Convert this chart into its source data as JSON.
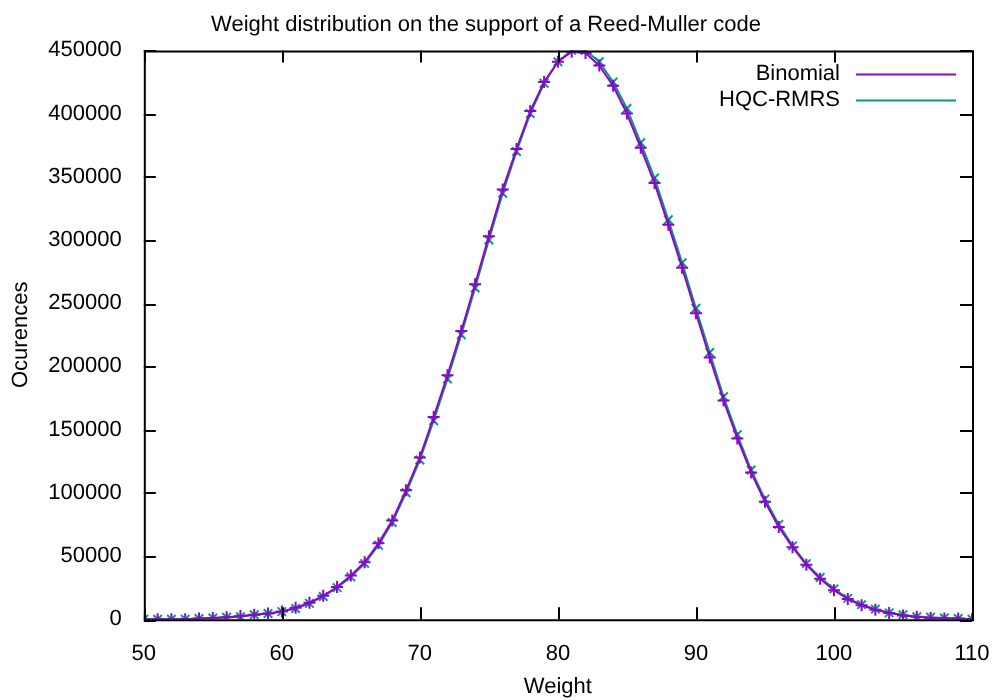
{
  "chart_data": {
    "type": "line",
    "title": "Weight distribution on the support of a Reed-Muller code",
    "xlabel": "Weight",
    "ylabel": "Ocurences",
    "x": [
      50,
      51,
      52,
      53,
      54,
      55,
      56,
      57,
      58,
      59,
      60,
      61,
      62,
      63,
      64,
      65,
      66,
      67,
      68,
      69,
      70,
      71,
      72,
      73,
      74,
      75,
      76,
      77,
      78,
      79,
      80,
      81,
      82,
      83,
      84,
      85,
      86,
      87,
      88,
      89,
      90,
      91,
      92,
      93,
      94,
      95,
      96,
      97,
      98,
      99,
      100,
      101,
      102,
      103,
      104,
      105,
      106,
      107,
      108,
      109,
      110
    ],
    "series": [
      {
        "name": "Binomial",
        "color": "#9400d3",
        "values": [
          0,
          0,
          0,
          0,
          500,
          1000,
          1500,
          2500,
          3500,
          4500,
          6000,
          9000,
          13000,
          18500,
          25500,
          34500,
          45000,
          60000,
          78000,
          102000,
          128000,
          160000,
          193000,
          228000,
          265000,
          303000,
          340000,
          372000,
          402000,
          425000,
          441000,
          449000,
          448000,
          438000,
          422000,
          400000,
          373000,
          345000,
          312000,
          278000,
          242000,
          207000,
          173000,
          143000,
          116000,
          93000,
          73000,
          57000,
          43000,
          32000,
          23000,
          16000,
          11000,
          7500,
          5000,
          3000,
          2000,
          1000,
          500,
          500,
          0
        ]
      },
      {
        "name": "HQC-RMRS",
        "color": "#009e73",
        "values": [
          0,
          0,
          0,
          0,
          500,
          1000,
          1500,
          2000,
          3500,
          4500,
          6000,
          8500,
          12500,
          18000,
          25000,
          33500,
          44000,
          58500,
          76500,
          100000,
          126000,
          157000,
          190000,
          225000,
          262000,
          300000,
          337000,
          370000,
          400000,
          424000,
          441000,
          450000,
          450000,
          441000,
          425000,
          404000,
          377000,
          349000,
          316000,
          282000,
          246000,
          211000,
          176000,
          146000,
          118000,
          95000,
          75000,
          58000,
          44000,
          33000,
          24000,
          16500,
          11500,
          8000,
          5000,
          3500,
          2000,
          1500,
          1000,
          500,
          0
        ]
      }
    ],
    "xlim": [
      50,
      110
    ],
    "xticks": [
      50,
      60,
      70,
      80,
      90,
      100,
      110
    ],
    "ylim": [
      0,
      450000
    ],
    "yticks": [
      0,
      50000,
      100000,
      150000,
      200000,
      250000,
      300000,
      350000,
      400000,
      450000
    ],
    "grid": false,
    "legend": "top right",
    "marker": "cross",
    "line_style": "solid"
  }
}
